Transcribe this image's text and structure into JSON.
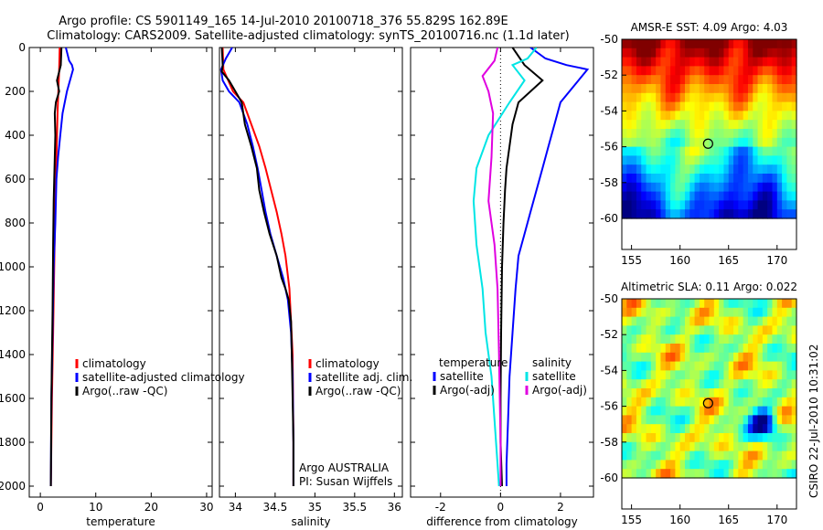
{
  "figure": {
    "title_line1": "Argo profile: CS 5901149_165 14-Jul-2010 20100718_376 55.829S 162.89E",
    "title_line2": "Climatology: CARS2009. Satellite-adjusted climatology: synTS_20100716.nc (1.1d later)",
    "footer": "CSIRO 22-Jul-2010 10:31:02"
  },
  "colors": {
    "climatology": "#ff0000",
    "satellite": "#0000ff",
    "argo": "#000000",
    "temp_diff_sat": "#0000ff",
    "temp_diff_argo": "#000000",
    "sal_diff_sat": "#00e5e5",
    "sal_diff_argo": "#e000e0"
  },
  "chart_data": [
    {
      "type": "line",
      "id": "temperature",
      "xlabel": "temperature",
      "xlim": [
        -2,
        31
      ],
      "ylim": [
        2050,
        0
      ],
      "xticks": [
        0,
        10,
        20,
        30
      ],
      "yticks": [
        0,
        200,
        400,
        600,
        800,
        1000,
        1200,
        1400,
        1600,
        1800,
        2000
      ],
      "legend": [
        "climatology",
        "satellite-adjusted climatology",
        "Argo(..raw -QC)"
      ],
      "legend_position": "lower-center",
      "series": [
        {
          "name": "climatology",
          "color": "climatology",
          "points": [
            [
              3.5,
              0
            ],
            [
              3.4,
              100
            ],
            [
              3.1,
              300
            ],
            [
              2.9,
              500
            ],
            [
              2.7,
              700
            ],
            [
              2.5,
              1000
            ],
            [
              2.3,
              1300
            ],
            [
              2.1,
              1600
            ],
            [
              2.0,
              1800
            ],
            [
              1.9,
              2000
            ]
          ]
        },
        {
          "name": "satellite-adjusted climatology",
          "color": "satellite",
          "points": [
            [
              4.6,
              0
            ],
            [
              5.2,
              60
            ],
            [
              5.7,
              80
            ],
            [
              5.9,
              100
            ],
            [
              4.8,
              200
            ],
            [
              4.0,
              300
            ],
            [
              3.6,
              400
            ],
            [
              3.2,
              500
            ],
            [
              2.9,
              600
            ],
            [
              2.7,
              800
            ],
            [
              2.4,
              1000
            ],
            [
              2.2,
              1300
            ],
            [
              2.0,
              1600
            ],
            [
              1.9,
              2000
            ]
          ]
        },
        {
          "name": "Argo(..raw -QC)",
          "color": "argo",
          "points": [
            [
              3.8,
              0
            ],
            [
              3.7,
              80
            ],
            [
              3.0,
              150
            ],
            [
              3.4,
              200
            ],
            [
              2.8,
              250
            ],
            [
              2.6,
              300
            ],
            [
              2.7,
              400
            ],
            [
              2.6,
              500
            ],
            [
              2.5,
              600
            ],
            [
              2.4,
              700
            ],
            [
              2.3,
              900
            ],
            [
              2.2,
              1200
            ],
            [
              2.0,
              1600
            ],
            [
              1.9,
              2000
            ]
          ]
        }
      ]
    },
    {
      "type": "line",
      "id": "salinity",
      "xlabel": "salinity",
      "xlim": [
        33.8,
        36.1
      ],
      "ylim": [
        2050,
        0
      ],
      "xticks": [
        34,
        34.5,
        35,
        35.5,
        36
      ],
      "yticks": [
        0,
        200,
        400,
        600,
        800,
        1000,
        1200,
        1400,
        1600,
        1800,
        2000
      ],
      "legend": [
        "climatology",
        "satellite adj. clim.",
        "Argo(..raw -QC)"
      ],
      "legend_position": "lower-right",
      "annotation": [
        "Argo AUSTRALIA",
        "PI: Susan Wijffels"
      ],
      "series": [
        {
          "name": "climatology",
          "color": "climatology",
          "points": [
            [
              33.84,
              0
            ],
            [
              33.85,
              100
            ],
            [
              33.97,
              200
            ],
            [
              34.1,
              250
            ],
            [
              34.2,
              350
            ],
            [
              34.3,
              450
            ],
            [
              34.38,
              550
            ],
            [
              34.45,
              650
            ],
            [
              34.52,
              750
            ],
            [
              34.58,
              850
            ],
            [
              34.63,
              950
            ],
            [
              34.68,
              1100
            ],
            [
              34.72,
              1400
            ],
            [
              34.73,
              1800
            ],
            [
              34.73,
              2000
            ]
          ]
        },
        {
          "name": "satellite adj. clim.",
          "color": "satellite",
          "points": [
            [
              33.96,
              0
            ],
            [
              33.88,
              50
            ],
            [
              33.82,
              100
            ],
            [
              33.84,
              150
            ],
            [
              33.92,
              200
            ],
            [
              34.05,
              250
            ],
            [
              34.15,
              350
            ],
            [
              34.22,
              450
            ],
            [
              34.28,
              550
            ],
            [
              34.33,
              650
            ],
            [
              34.38,
              750
            ],
            [
              34.44,
              850
            ],
            [
              34.52,
              950
            ],
            [
              34.6,
              1050
            ],
            [
              34.66,
              1150
            ],
            [
              34.7,
              1300
            ],
            [
              34.72,
              1500
            ],
            [
              34.73,
              1800
            ],
            [
              34.73,
              2000
            ]
          ]
        },
        {
          "name": "Argo(..raw -QC)",
          "color": "argo",
          "points": [
            [
              33.83,
              0
            ],
            [
              33.84,
              80
            ],
            [
              33.83,
              110
            ],
            [
              33.92,
              150
            ],
            [
              34.0,
              200
            ],
            [
              34.08,
              250
            ],
            [
              34.12,
              350
            ],
            [
              34.2,
              450
            ],
            [
              34.27,
              550
            ],
            [
              34.3,
              650
            ],
            [
              34.36,
              750
            ],
            [
              34.43,
              850
            ],
            [
              34.52,
              950
            ],
            [
              34.58,
              1050
            ],
            [
              34.63,
              1100
            ],
            [
              34.67,
              1150
            ],
            [
              34.7,
              1250
            ],
            [
              34.71,
              1400
            ],
            [
              34.72,
              1600
            ],
            [
              34.73,
              1800
            ],
            [
              34.73,
              2000
            ]
          ]
        }
      ]
    },
    {
      "type": "line",
      "id": "difference",
      "xlabel": "difference from climatology",
      "xlim": [
        -3,
        3.1
      ],
      "ylim": [
        2050,
        0
      ],
      "xticks": [
        -2,
        0,
        2
      ],
      "yticks": [
        0,
        200,
        400,
        600,
        800,
        1000,
        1200,
        1400,
        1600,
        1800,
        2000
      ],
      "legend_temperature": [
        "temperature",
        "satellite",
        "Argo(-adj)"
      ],
      "legend_salinity": [
        "salinity",
        "satellite",
        "Argo(-adj)"
      ],
      "legend_position": "lower-center",
      "zero_line": true,
      "series": [
        {
          "name": "temperature satellite",
          "color": "temp_diff_sat",
          "points": [
            [
              1.0,
              0
            ],
            [
              1.5,
              50
            ],
            [
              2.2,
              80
            ],
            [
              2.9,
              100
            ],
            [
              2.6,
              150
            ],
            [
              2.0,
              250
            ],
            [
              1.8,
              350
            ],
            [
              1.6,
              450
            ],
            [
              1.4,
              550
            ],
            [
              1.2,
              650
            ],
            [
              1.0,
              750
            ],
            [
              0.8,
              850
            ],
            [
              0.6,
              950
            ],
            [
              0.5,
              1100
            ],
            [
              0.4,
              1300
            ],
            [
              0.3,
              1500
            ],
            [
              0.25,
              1700
            ],
            [
              0.2,
              1900
            ],
            [
              0.2,
              2000
            ]
          ]
        },
        {
          "name": "temperature Argo(-adj)",
          "color": "temp_diff_argo",
          "points": [
            [
              0.4,
              0
            ],
            [
              0.8,
              80
            ],
            [
              1.4,
              150
            ],
            [
              0.6,
              250
            ],
            [
              0.4,
              350
            ],
            [
              0.3,
              450
            ],
            [
              0.2,
              550
            ],
            [
              0.15,
              650
            ],
            [
              0.1,
              800
            ],
            [
              0.05,
              1000
            ],
            [
              0.02,
              1300
            ],
            [
              0.0,
              1600
            ],
            [
              0.0,
              1800
            ],
            [
              0.05,
              2000
            ]
          ]
        },
        {
          "name": "salinity satellite",
          "color": "sal_diff_sat",
          "points": [
            [
              1.2,
              0
            ],
            [
              0.9,
              50
            ],
            [
              0.4,
              80
            ],
            [
              0.8,
              150
            ],
            [
              0.3,
              250
            ],
            [
              -0.4,
              400
            ],
            [
              -0.8,
              550
            ],
            [
              -0.9,
              700
            ],
            [
              -0.8,
              900
            ],
            [
              -0.6,
              1100
            ],
            [
              -0.5,
              1300
            ],
            [
              -0.3,
              1500
            ],
            [
              -0.2,
              1700
            ],
            [
              -0.1,
              1900
            ],
            [
              -0.05,
              2000
            ]
          ]
        },
        {
          "name": "salinity Argo(-adj)",
          "color": "sal_diff_argo",
          "points": [
            [
              -0.1,
              0
            ],
            [
              -0.2,
              60
            ],
            [
              -0.6,
              130
            ],
            [
              -0.4,
              200
            ],
            [
              -0.25,
              300
            ],
            [
              -0.3,
              500
            ],
            [
              -0.4,
              700
            ],
            [
              -0.2,
              900
            ],
            [
              -0.1,
              1100
            ],
            [
              -0.05,
              1400
            ],
            [
              0.0,
              1800
            ],
            [
              0.0,
              2000
            ]
          ]
        }
      ]
    },
    {
      "type": "heatmap",
      "id": "sst",
      "title": "AMSR-E SST: 4.09 Argo: 4.03",
      "xticks": [
        155,
        160,
        165,
        170
      ],
      "yticks": [
        -50,
        -52,
        -54,
        -56,
        -58,
        -60
      ],
      "xlim": [
        154,
        172
      ],
      "ylim": [
        -60,
        -50
      ],
      "profile_marker": {
        "lon": 162.89,
        "lat": -55.83
      }
    },
    {
      "type": "heatmap",
      "id": "sla",
      "title": "Altimetric SLA: 0.11 Argo: 0.022",
      "xticks": [
        155,
        160,
        165,
        170
      ],
      "yticks": [
        -50,
        -52,
        -54,
        -56,
        -58,
        -60
      ],
      "xlim": [
        154,
        172
      ],
      "ylim": [
        -60,
        -50
      ],
      "profile_marker": {
        "lon": 162.89,
        "lat": -55.83
      }
    }
  ]
}
